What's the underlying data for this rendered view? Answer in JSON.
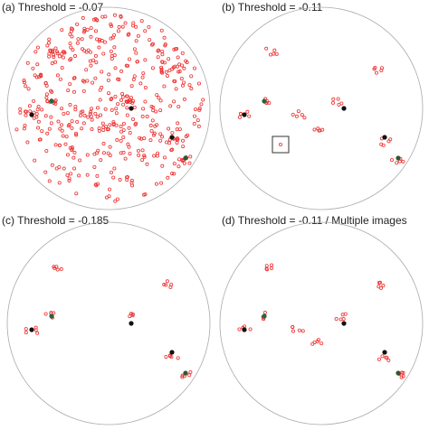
{
  "panels": [
    {
      "title": "(a) Threshold = -0.07"
    },
    {
      "title": "(b) Threshold = -0.11"
    },
    {
      "title": "(c) Threshold = -0.185"
    },
    {
      "title": "(d) Threshold = -0.11 / Multiple images"
    }
  ]
}
